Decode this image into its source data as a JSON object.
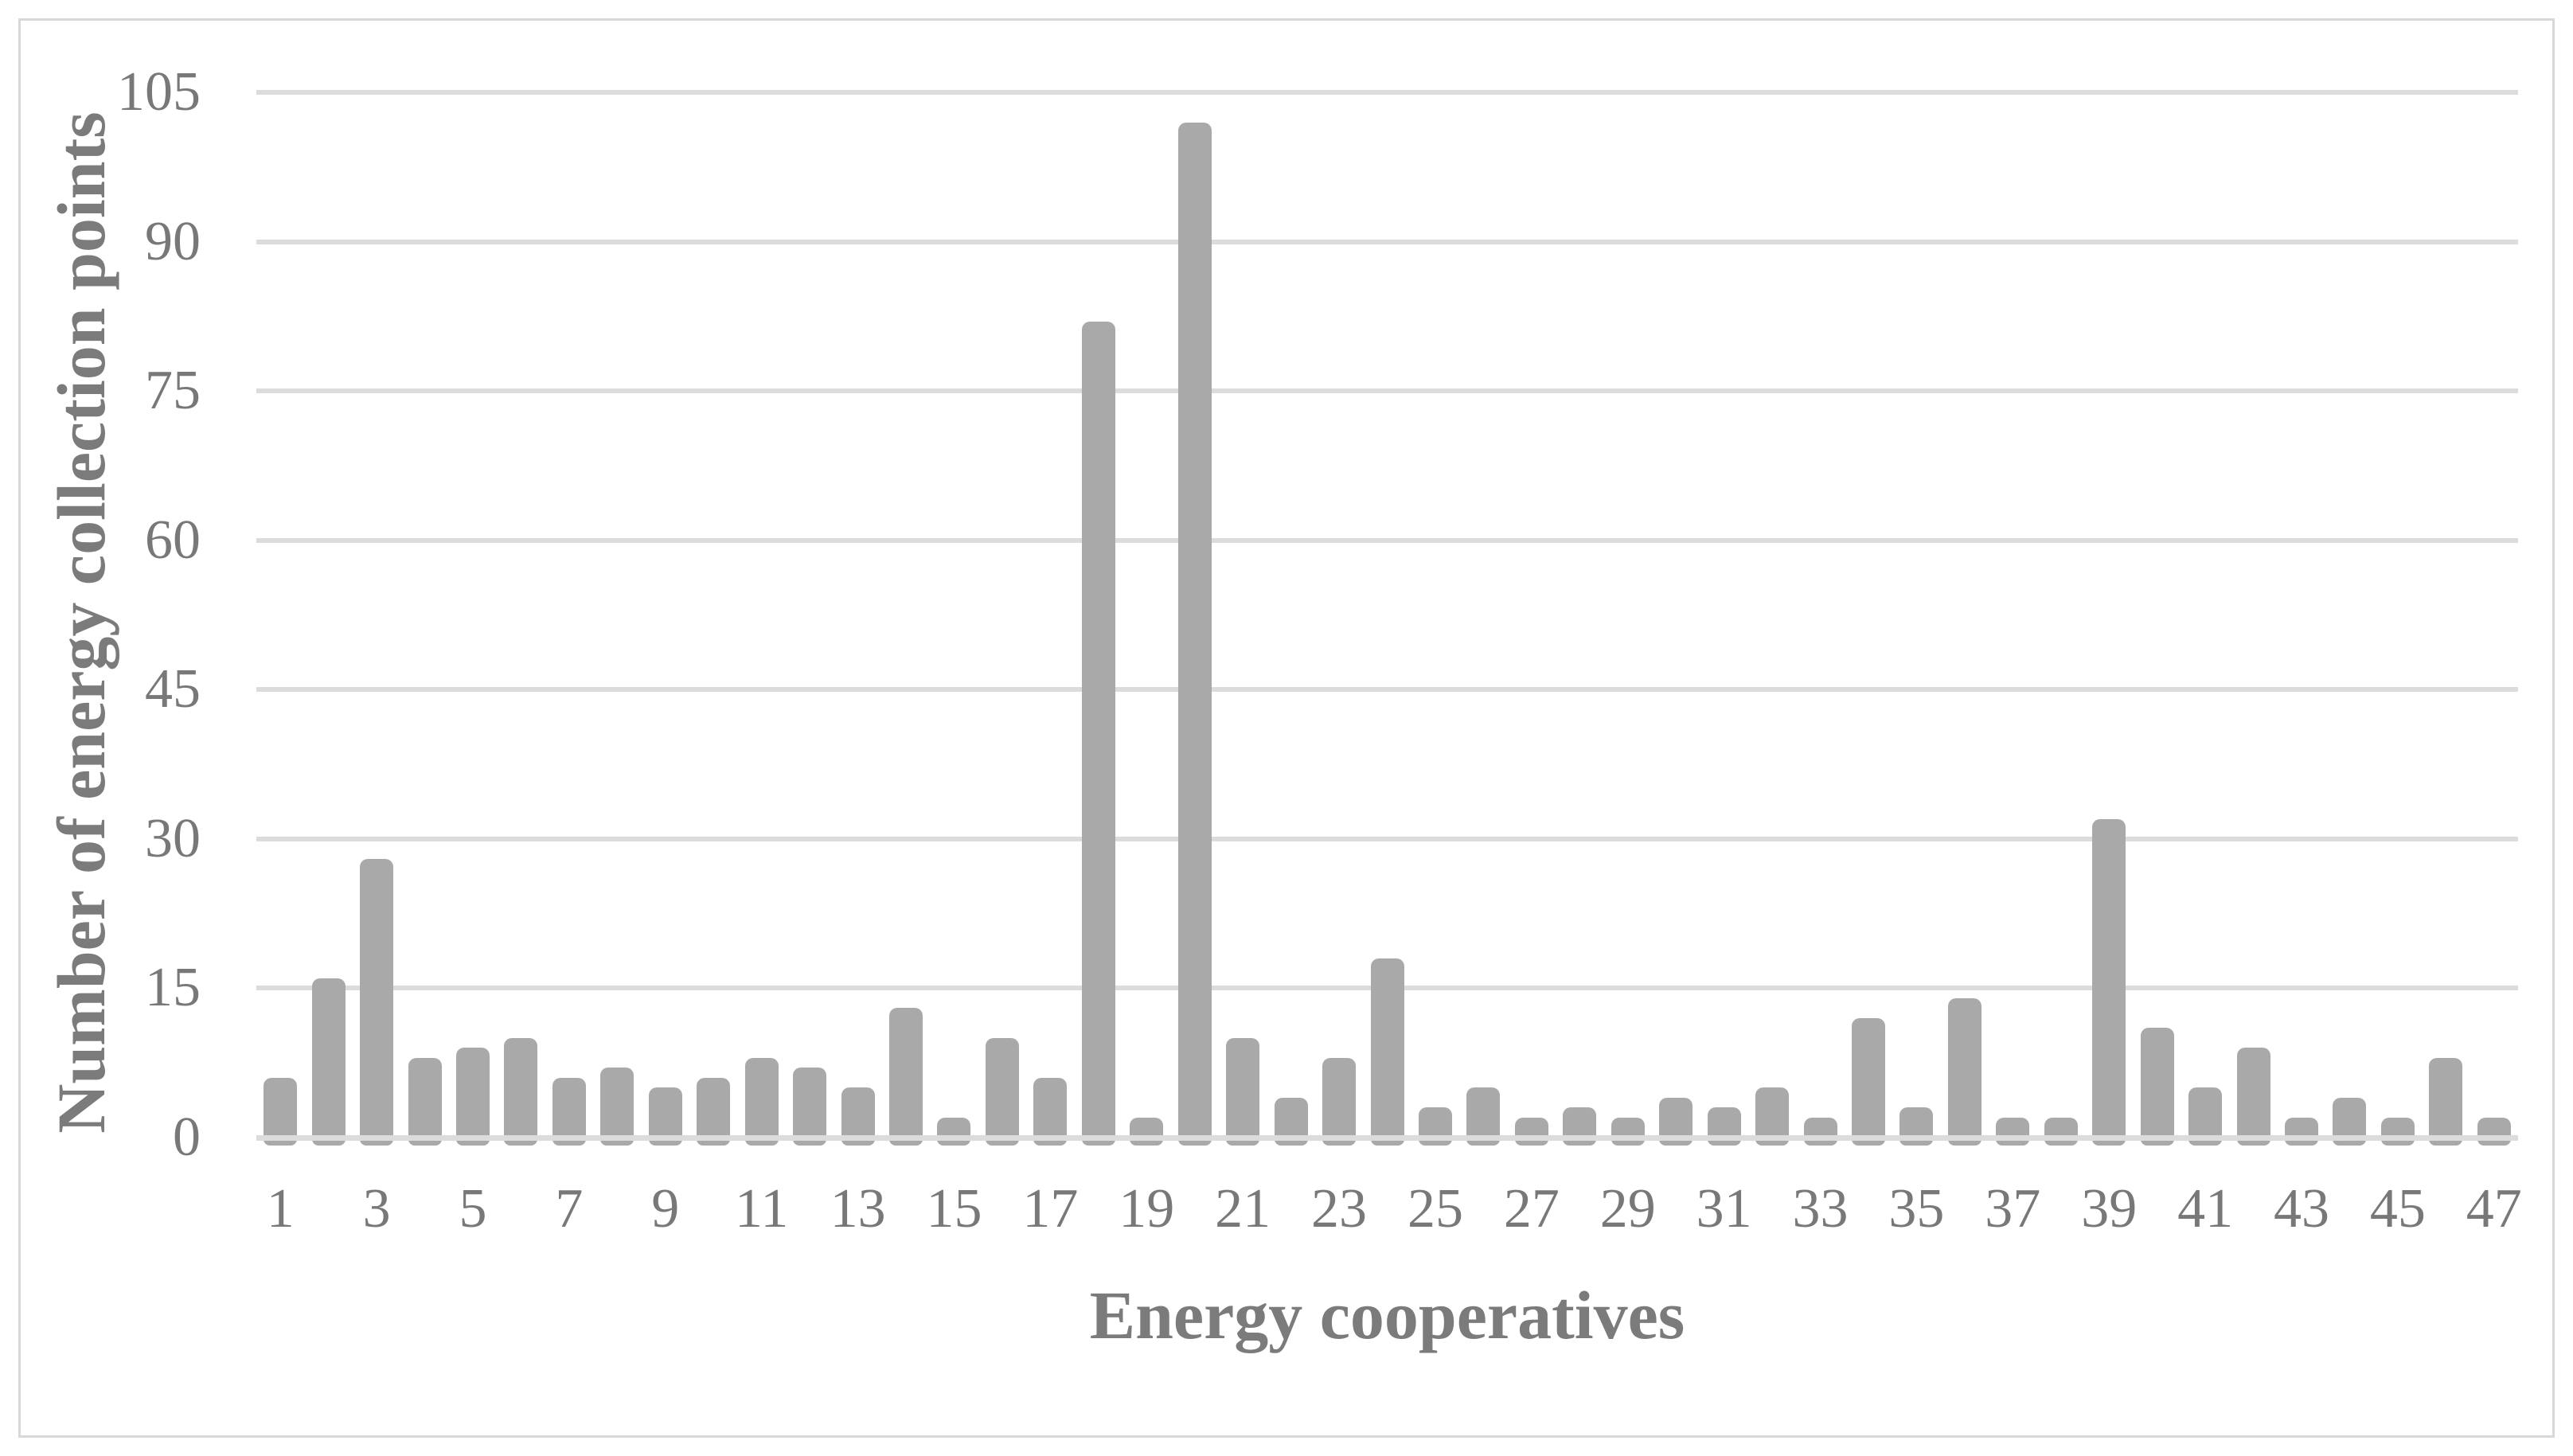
{
  "figure": {
    "background_color": "#ffffff",
    "border_color": "#d8d8d8"
  },
  "chart_data": {
    "type": "bar",
    "title": "",
    "xlabel": "Energy cooperatives",
    "ylabel": "Number of energy collection points",
    "categories": [
      1,
      2,
      3,
      4,
      5,
      6,
      7,
      8,
      9,
      10,
      11,
      12,
      13,
      14,
      15,
      16,
      17,
      18,
      19,
      20,
      21,
      22,
      23,
      24,
      25,
      26,
      27,
      28,
      29,
      30,
      31,
      32,
      33,
      34,
      35,
      36,
      37,
      38,
      39,
      40,
      41,
      42,
      43,
      44,
      45,
      46,
      47
    ],
    "values": [
      6,
      16,
      28,
      8,
      9,
      10,
      6,
      7,
      5,
      6,
      8,
      7,
      5,
      13,
      2,
      10,
      6,
      82,
      2,
      102,
      10,
      4,
      8,
      18,
      3,
      5,
      2,
      3,
      2,
      4,
      3,
      5,
      2,
      12,
      3,
      14,
      2,
      2,
      32,
      11,
      5,
      9,
      2,
      4,
      2,
      8,
      2
    ],
    "ylim": [
      0,
      105
    ],
    "yticks": [
      0,
      15,
      30,
      45,
      60,
      75,
      90,
      105
    ],
    "x_ticks_shown": [
      1,
      3,
      5,
      7,
      9,
      11,
      13,
      15,
      17,
      19,
      21,
      23,
      25,
      27,
      29,
      31,
      33,
      35,
      37,
      39,
      41,
      43,
      45,
      47
    ],
    "grid": "horizontal-only",
    "legend": "none",
    "bar_color": "#a9a9a9",
    "gridline_color": "#dcdcdc",
    "axis_line_color": "#dcdcdc",
    "text_color": "#787878"
  }
}
